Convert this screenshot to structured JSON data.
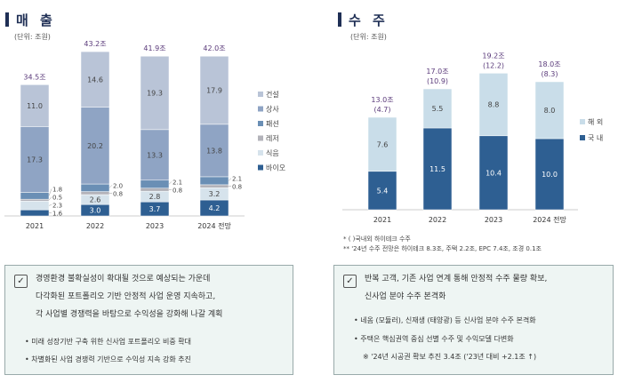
{
  "sales": {
    "title": "매 출",
    "unit": "(단위: 조원)",
    "chart_data": {
      "type": "bar",
      "stacked": true,
      "categories": [
        "2021",
        "2022",
        "2023",
        "2024 전망"
      ],
      "totals": [
        "34.5조",
        "43.2조",
        "41.9조",
        "42.0조"
      ],
      "series": [
        {
          "name": "바이오",
          "color": "#2e5f92",
          "values": [
            1.6,
            3.0,
            3.7,
            4.2
          ]
        },
        {
          "name": "식음",
          "color": "#d6e3ec",
          "values": [
            2.3,
            2.6,
            2.8,
            3.2
          ]
        },
        {
          "name": "레저",
          "color": "#b3b3ba",
          "values": [
            0.5,
            0.8,
            0.8,
            0.8
          ]
        },
        {
          "name": "패션",
          "color": "#6a8fb5",
          "values": [
            1.8,
            2.0,
            2.1,
            2.1
          ]
        },
        {
          "name": "상사",
          "color": "#8fa4c4",
          "values": [
            17.3,
            20.2,
            13.3,
            13.8
          ]
        },
        {
          "name": "건설",
          "color": "#b9c4d7",
          "values": [
            11.0,
            14.6,
            19.3,
            17.9
          ]
        }
      ]
    }
  },
  "orders": {
    "title": "수 주",
    "unit": "(단위: 조원)",
    "chart_data": {
      "type": "bar",
      "stacked": true,
      "categories": [
        "2021",
        "2022",
        "2023",
        "2024 전망"
      ],
      "totals": [
        "13.0조",
        "17.0조",
        "19.2조",
        "18.0조"
      ],
      "sub_totals": [
        "(4.7)",
        "(10.9)",
        "(12.2)",
        "(8.3)"
      ],
      "series": [
        {
          "name": "국 내",
          "color": "#2e5f92",
          "values": [
            5.4,
            11.5,
            10.4,
            10.0
          ]
        },
        {
          "name": "해 외",
          "color": "#c9dde9",
          "values": [
            7.6,
            5.5,
            8.8,
            8.0
          ]
        }
      ]
    },
    "notes": [
      "*   ( )국내외 하이테크 수주",
      "**  '24년 수주 전망은 하이테크 8.3조, 주택 2.2조, EPC 7.4조, 조경 0.1조"
    ]
  },
  "left_box": {
    "lines": [
      "경영환경 불확실성이 확대될 것으로 예상되는 가운데",
      "다각화된 포트폴리오 기반 안정적 사업 운영 지속하고,",
      "각 사업별 경쟁력을 바탕으로 수익성을 강화해 나갈 계획"
    ],
    "bullets": [
      "• 미래 성장기반 구축 위한 신사업 포트폴리오 비중 확대",
      "• 차별화된 사업 경쟁력 기반으로 수익성 지속 강화 추진"
    ]
  },
  "right_box": {
    "lines": [
      "반복 고객, 기존 사업 연계 통해 안정적 수주 물량 확보,",
      "신사업 분야  수주 본격화"
    ],
    "bullets": [
      "• 네옴 (모듈러), 신재생 (태양광) 등 신사업 분야 수주 본격화",
      "• 주택은 핵심권역 중심 선별 수주 및 수익모델 다변화",
      "※ '24년 시공권 확보 추진 3.4조 ('23년 대비 +2.1조 ↑)"
    ]
  },
  "checkbox_icon": "checkmark-box-icon"
}
